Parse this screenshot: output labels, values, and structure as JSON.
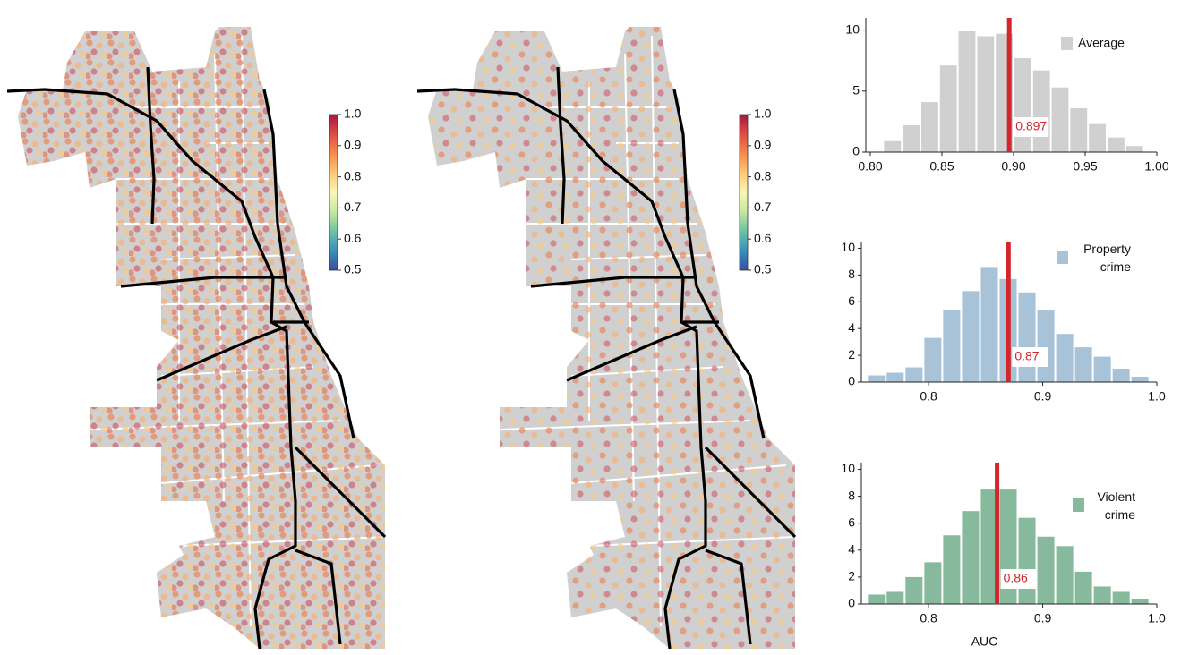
{
  "chart_data": [
    {
      "type": "colorbar",
      "ylim": [
        0.5,
        1.0
      ],
      "yticks": [
        0.5,
        0.6,
        0.7,
        0.8,
        0.9,
        {
          "value": 1.0,
          "label": "1.0"
        }
      ],
      "colors": [
        "#3b4fa0",
        "#3a8fbb",
        "#6cc2a6",
        "#c4e89e",
        "#fbf6b6",
        "#fdc877",
        "#f58b4c",
        "#dd4d48",
        "#a8163f"
      ]
    },
    {
      "type": "colorbar",
      "ylim": [
        0.5,
        1.0
      ],
      "yticks": [
        0.5,
        0.6,
        0.7,
        0.8,
        0.9,
        {
          "value": 1.0,
          "label": "1.0"
        }
      ],
      "colors": [
        "#3b4fa0",
        "#3a8fbb",
        "#6cc2a6",
        "#c4e89e",
        "#fbf6b6",
        "#fdc877",
        "#f58b4c",
        "#dd4d48",
        "#a8163f"
      ]
    },
    {
      "type": "histogram",
      "name": "Average",
      "color": "#d0d0d0",
      "bins": [
        0.809,
        0.822,
        0.835,
        0.848,
        0.861,
        0.874,
        0.887,
        0.9,
        0.913,
        0.926,
        0.939,
        0.952,
        0.965,
        0.978,
        0.991
      ],
      "values": [
        0.9,
        2.2,
        4.1,
        7.1,
        9.9,
        9.5,
        9.7,
        7.7,
        6.7,
        5.3,
        3.6,
        2.3,
        1.2,
        0.5
      ],
      "marker": 0.897,
      "marker_color": "#d3262c",
      "xlim": [
        0.8,
        1.0
      ],
      "xticks": [
        {
          "value": 0.8,
          "label": "0.80"
        },
        0.85,
        {
          "value": 0.9,
          "label": "0.90"
        },
        0.95,
        {
          "value": 1.0,
          "label": "1.00"
        }
      ],
      "ylim": [
        0,
        11
      ],
      "yticks": [
        0,
        5,
        10
      ]
    },
    {
      "type": "histogram",
      "name": "Property crime",
      "color": "#a8c2d7",
      "bins": [
        0.746,
        0.7625,
        0.779,
        0.7955,
        0.812,
        0.8285,
        0.845,
        0.8615,
        0.878,
        0.8945,
        0.911,
        0.9275,
        0.944,
        0.9605,
        0.977,
        0.9935
      ],
      "values": [
        0.5,
        0.7,
        1.1,
        3.3,
        5.4,
        6.8,
        8.6,
        7.7,
        6.7,
        5.4,
        3.6,
        2.6,
        1.9,
        1.0,
        0.4
      ],
      "marker": 0.87,
      "marker_color": "#d3262c",
      "xlim": [
        0.745,
        1.0
      ],
      "xticks": [
        0.8,
        0.9,
        {
          "value": 1.0,
          "label": "1.0"
        }
      ],
      "ylim": [
        0,
        10.5
      ],
      "yticks": [
        0,
        2,
        4,
        6,
        8,
        10
      ]
    },
    {
      "type": "histogram",
      "name": "Violent crime",
      "color": "#87b99d",
      "bins": [
        0.746,
        0.7625,
        0.779,
        0.7955,
        0.812,
        0.8285,
        0.845,
        0.8615,
        0.878,
        0.8945,
        0.911,
        0.9275,
        0.944,
        0.9605,
        0.977,
        0.9935
      ],
      "values": [
        0.7,
        0.9,
        2.0,
        3.1,
        5.1,
        6.9,
        8.5,
        8.5,
        6.4,
        5.0,
        4.3,
        2.4,
        1.3,
        0.9,
        0.4
      ],
      "marker": 0.86,
      "marker_color": "#d3262c",
      "xlim": [
        0.745,
        1.0
      ],
      "xticks": [
        0.8,
        0.9,
        {
          "value": 1.0,
          "label": "1.0"
        }
      ],
      "ylim": [
        0,
        10.5
      ],
      "yticks": [
        0,
        2,
        4,
        6,
        8,
        10
      ],
      "xlabel": "AUC"
    }
  ]
}
